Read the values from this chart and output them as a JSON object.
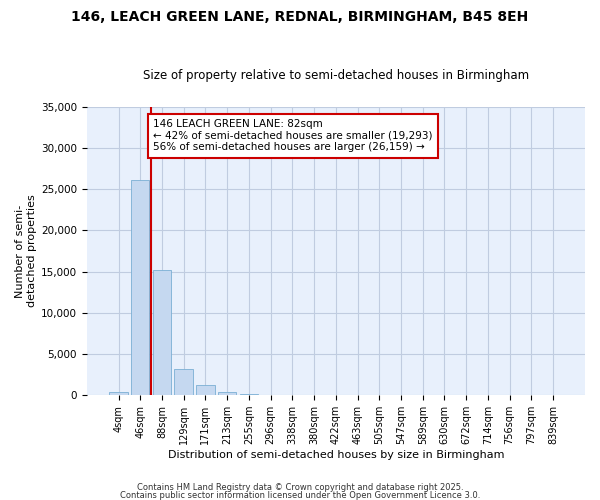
{
  "title": "146, LEACH GREEN LANE, REDNAL, BIRMINGHAM, B45 8EH",
  "subtitle": "Size of property relative to semi-detached houses in Birmingham",
  "xlabel": "Distribution of semi-detached houses by size in Birmingham",
  "ylabel": "Number of semi-\ndetached properties",
  "categories": [
    "4sqm",
    "46sqm",
    "88sqm",
    "129sqm",
    "171sqm",
    "213sqm",
    "255sqm",
    "296sqm",
    "338sqm",
    "380sqm",
    "422sqm",
    "463sqm",
    "505sqm",
    "547sqm",
    "589sqm",
    "630sqm",
    "672sqm",
    "714sqm",
    "756sqm",
    "797sqm",
    "839sqm"
  ],
  "values": [
    380,
    26100,
    15200,
    3200,
    1200,
    400,
    150,
    0,
    0,
    0,
    0,
    0,
    0,
    0,
    0,
    0,
    0,
    0,
    0,
    0,
    0
  ],
  "bar_color": "#c5d8f0",
  "bar_edge_color": "#7bafd4",
  "vline_color": "#cc0000",
  "ylim": [
    0,
    35000
  ],
  "yticks": [
    0,
    5000,
    10000,
    15000,
    20000,
    25000,
    30000,
    35000
  ],
  "annotation_text": "146 LEACH GREEN LANE: 82sqm\n← 42% of semi-detached houses are smaller (19,293)\n56% of semi-detached houses are larger (26,159) →",
  "annotation_box_color": "#ffffff",
  "annotation_box_edge_color": "#cc0000",
  "footnote1": "Contains HM Land Registry data © Crown copyright and database right 2025.",
  "footnote2": "Contains public sector information licensed under the Open Government Licence 3.0.",
  "plot_bg_color": "#e8f0fc",
  "fig_bg_color": "#ffffff",
  "grid_color": "#c0cce0"
}
